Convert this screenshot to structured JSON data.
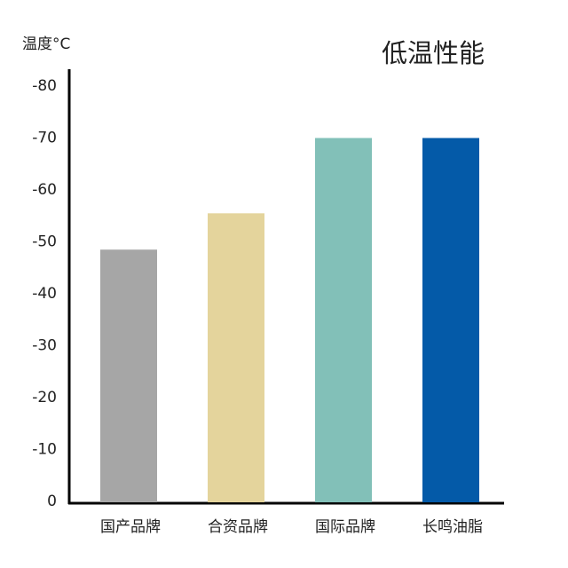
{
  "chart_data": {
    "type": "bar",
    "title": "低温性能",
    "y_label": "温度°C",
    "categories": [
      "国产品牌",
      "合资品牌",
      "国际品牌",
      "长鸣油脂"
    ],
    "values": [
      -48.5,
      -55.5,
      -70,
      -70
    ],
    "colors": [
      "#a6a6a6",
      "#e4d49c",
      "#82c0b8",
      "#045aa8"
    ],
    "ylim": [
      0,
      -80
    ],
    "yticks": [
      0,
      -10,
      -20,
      -30,
      -40,
      -50,
      -60,
      -70,
      -80
    ],
    "grid": false
  }
}
